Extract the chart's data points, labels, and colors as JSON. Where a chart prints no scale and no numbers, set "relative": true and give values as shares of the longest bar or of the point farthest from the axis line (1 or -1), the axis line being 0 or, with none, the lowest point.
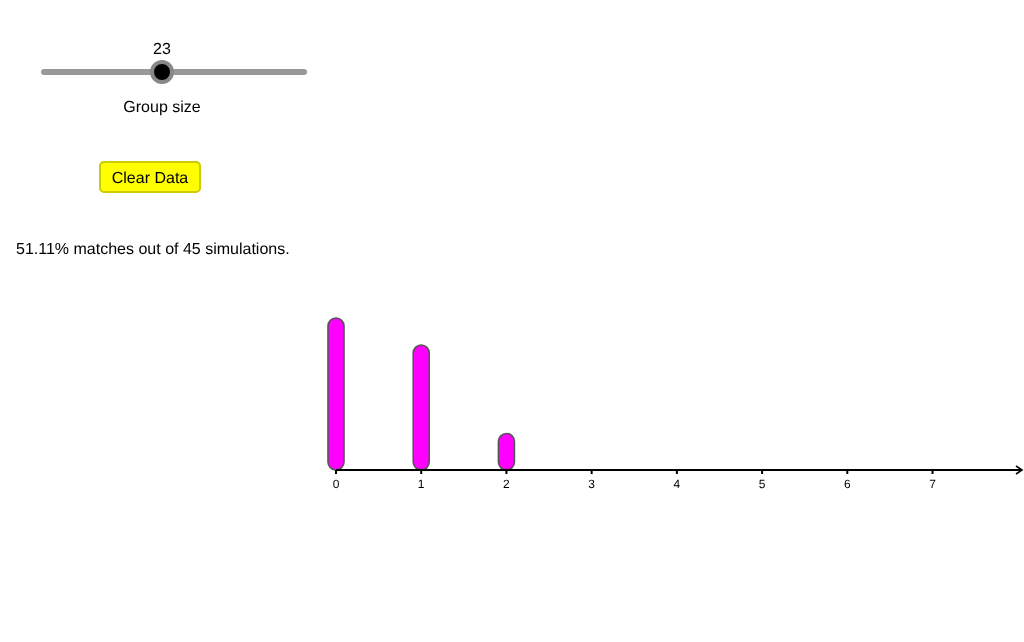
{
  "chart_data": {
    "type": "bar",
    "relative": true,
    "x": [
      0,
      1,
      2
    ],
    "values": [
      1,
      0.82,
      0.23
    ],
    "color": "#ff00ff",
    "xlim": [
      0,
      8.05
    ],
    "xticks": [
      0,
      1,
      2,
      3,
      4,
      5,
      6,
      7
    ],
    "annotations": [
      "23",
      "Group size",
      "Clear Data",
      "51.11% matches out of 45 simulations."
    ]
  }
}
